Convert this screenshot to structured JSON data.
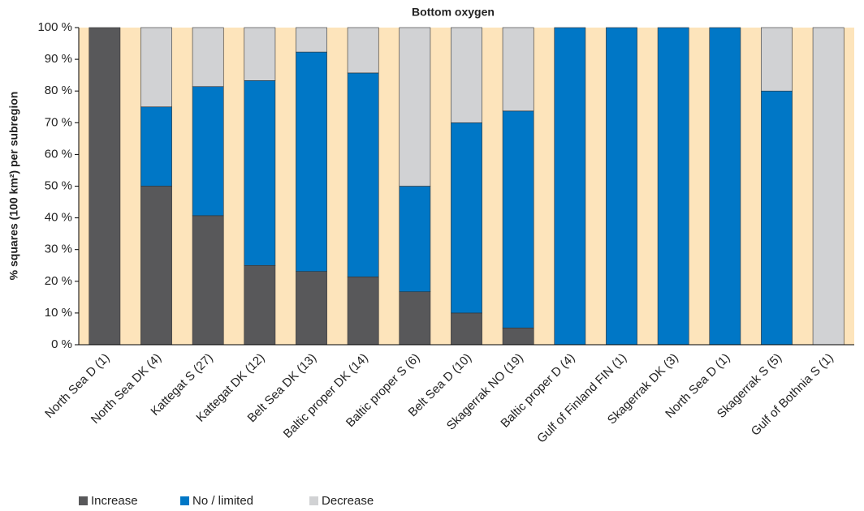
{
  "chart_data": {
    "type": "stacked_bar",
    "title": "Bottom oxygen",
    "y_label": "% squares (100 km²) per subregion",
    "categories": [
      "North Sea D (1)",
      "North Sea DK (4)",
      "Kattegat S (27)",
      "Kattegat DK (12)",
      "Belt Sea DK (13)",
      "Baltic proper DK (14)",
      "Baltic proper S (6)",
      "Belt Sea D (10)",
      "Skagerrak NO (19)",
      "Baltic proper D (4)",
      "Gulf of Finland FIN (1)",
      "Skagerrak DK (3)",
      "North Sea D (1)",
      "Skagerrak S (5)",
      "Gulf of Bothnia S (1)"
    ],
    "series": [
      {
        "name": "Increase",
        "color": "#58585a",
        "values": [
          100,
          50,
          40.7,
          25,
          23.1,
          21.4,
          16.7,
          10,
          5.3,
          0,
          0,
          0,
          0,
          0,
          0
        ]
      },
      {
        "name": "No / limited",
        "color": "#0077c6",
        "values": [
          0,
          25,
          40.7,
          58.3,
          69.2,
          64.3,
          33.3,
          60,
          68.4,
          100,
          100,
          100,
          100,
          80,
          0
        ]
      },
      {
        "name": "Decrease",
        "color": "#d1d2d4",
        "values": [
          0,
          25,
          18.6,
          16.7,
          7.7,
          14.3,
          50,
          30,
          26.3,
          0,
          0,
          0,
          0,
          20,
          100
        ]
      }
    ],
    "ylim": [
      0,
      100
    ],
    "yticks": [
      {
        "value": 0,
        "label": "0 %"
      },
      {
        "value": 10,
        "label": "10 %"
      },
      {
        "value": 20,
        "label": "20 %"
      },
      {
        "value": 30,
        "label": "30 %"
      },
      {
        "value": 40,
        "label": "40 %"
      },
      {
        "value": 50,
        "label": "50 %"
      },
      {
        "value": 60,
        "label": "60 %"
      },
      {
        "value": 70,
        "label": "70 %"
      },
      {
        "value": 80,
        "label": "80 %"
      },
      {
        "value": 90,
        "label": "90 %"
      },
      {
        "value": 100,
        "label": "100 %"
      }
    ],
    "plot_background": "#fde4bb",
    "legend": "bottom-left"
  }
}
